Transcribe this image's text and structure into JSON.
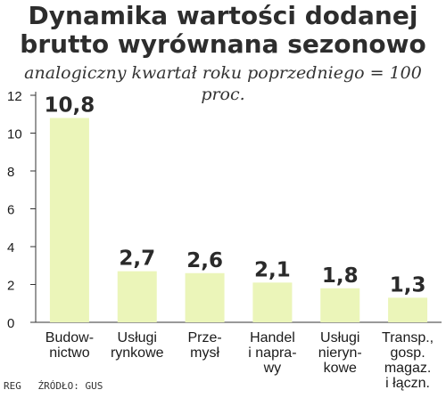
{
  "chart_data": {
    "type": "bar",
    "title_line1": "Dynamika wartości dodanej",
    "title_line2": "brutto wyrównana sezonowo",
    "subtitle": "analogiczny kwartał roku poprzedniego = 100 proc.",
    "categories": [
      [
        "Budow-",
        "nictwo"
      ],
      [
        "Usługi",
        "rynkowe"
      ],
      [
        "Prze-",
        "mysł"
      ],
      [
        "Handel",
        "i napra-",
        "wy"
      ],
      [
        "Usługi",
        "nieryn-",
        "kowe"
      ],
      [
        "Transp.,",
        "gosp.",
        "magaz.",
        "i łączn."
      ]
    ],
    "values": [
      10.8,
      2.7,
      2.6,
      2.1,
      1.8,
      1.3
    ],
    "value_labels": [
      "10,8",
      "2,7",
      "2,6",
      "2,1",
      "1,8",
      "1,3"
    ],
    "yticks": [
      0,
      2,
      4,
      6,
      8,
      10,
      12
    ],
    "ylim": [
      0,
      12
    ],
    "grid": false,
    "colors": {
      "bar": "#ebf5b9",
      "axis": "#333333",
      "text": "#1a1a1a"
    }
  },
  "footer": {
    "author": "REG",
    "source": "ŹRÓDŁO: GUS"
  }
}
